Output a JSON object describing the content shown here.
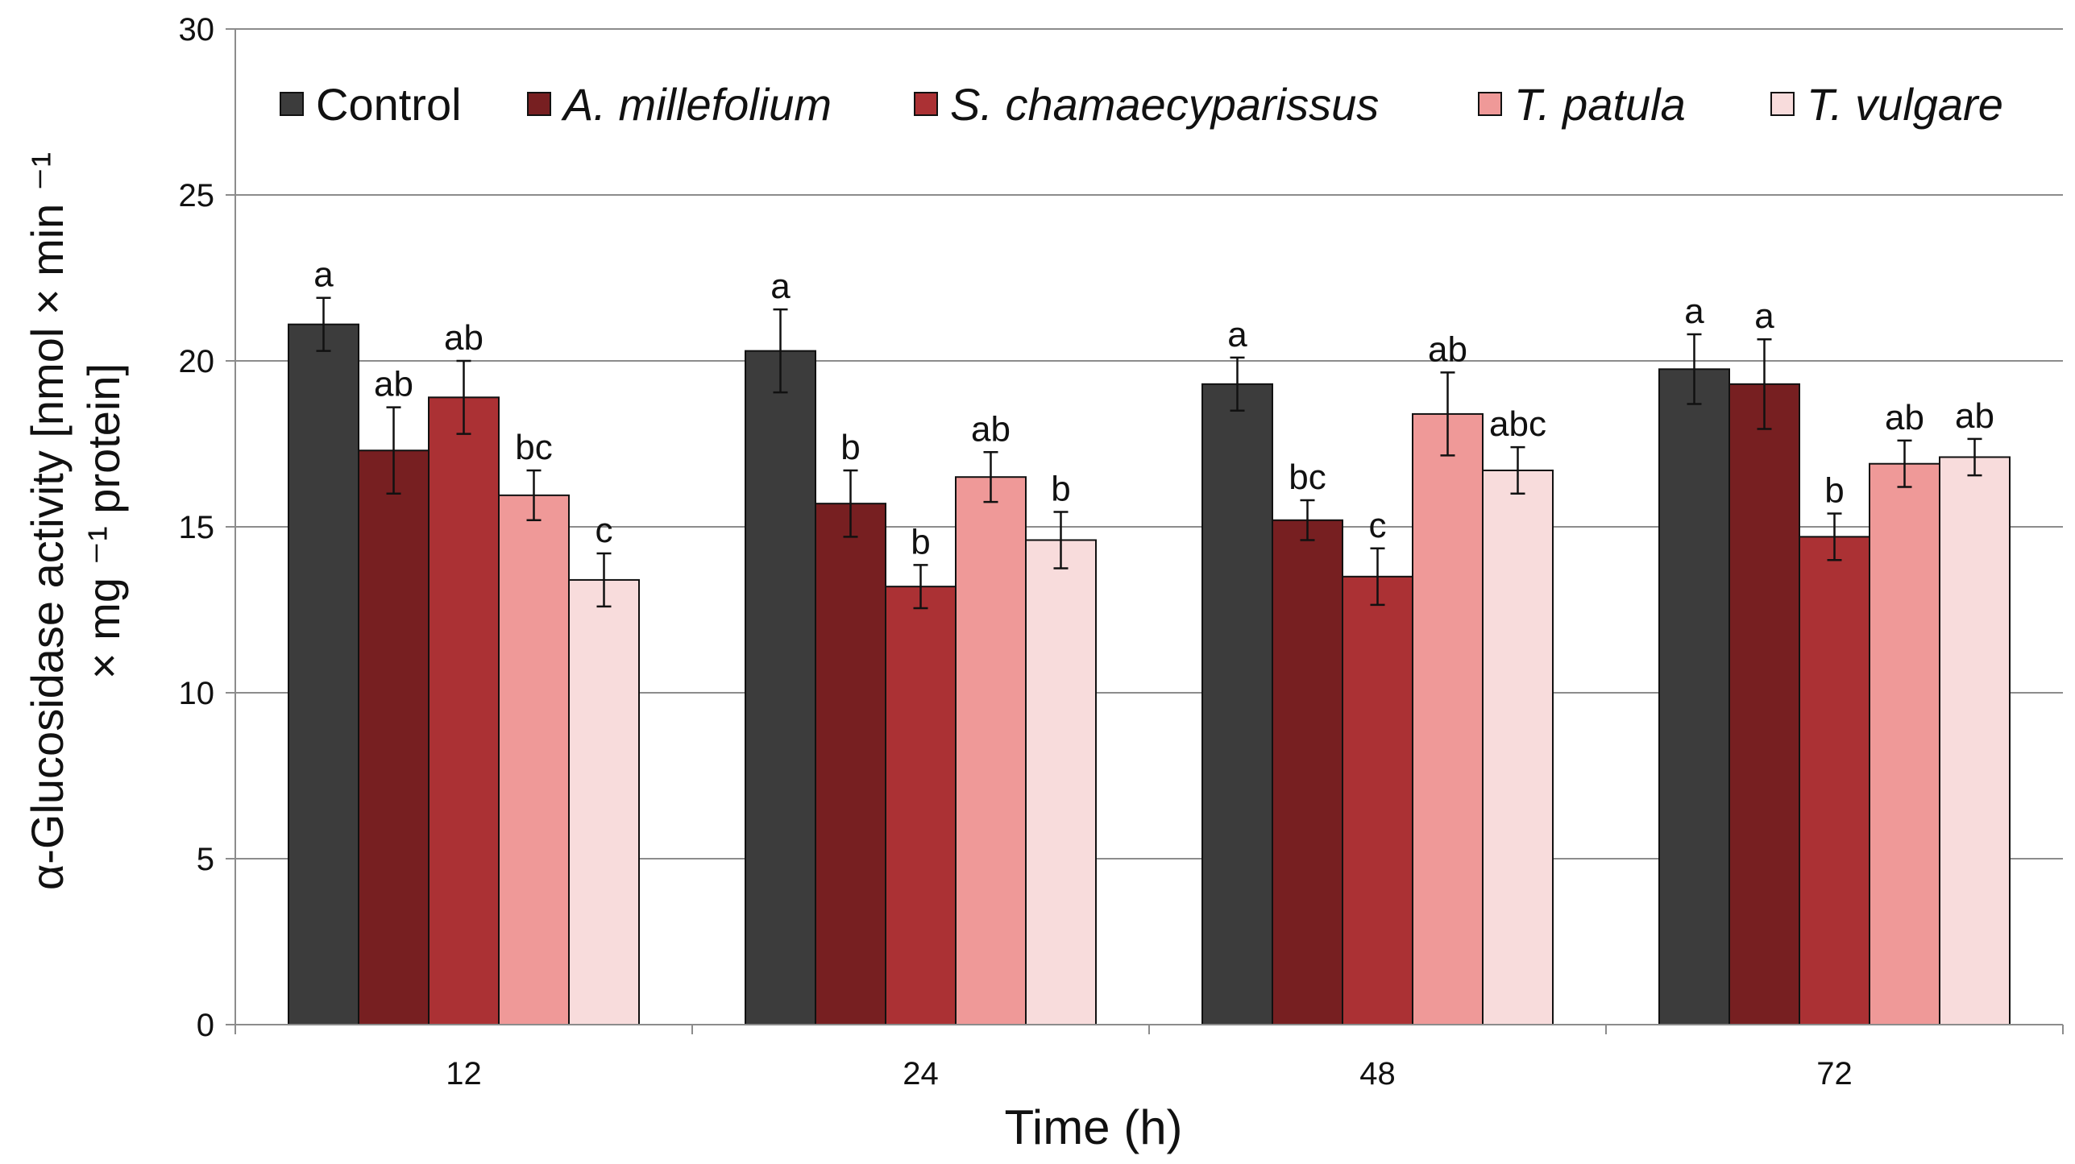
{
  "chart_data": {
    "type": "bar",
    "title": "",
    "xlabel": "Time (h)",
    "ylabel_lines": [
      "α-Glucosidase activity [nmol × min ⁻¹",
      "× mg ⁻¹ protein]"
    ],
    "ylim": [
      0,
      30
    ],
    "yticks": [
      "0",
      "5",
      "10",
      "15",
      "20",
      "25",
      "30"
    ],
    "ytick_values": [
      0,
      5,
      10,
      15,
      20,
      25,
      30
    ],
    "grid": true,
    "legend_position": "top",
    "categories": [
      "12",
      "24",
      "48",
      "72"
    ],
    "series": [
      {
        "name": "Control",
        "italic": false,
        "color": "#3c3c3c",
        "values": [
          21.1,
          20.3,
          19.3,
          19.75
        ],
        "errors": [
          0.8,
          1.25,
          0.8,
          1.05
        ],
        "labels": [
          "a",
          "a",
          "a",
          "a"
        ]
      },
      {
        "name": "A. millefolium",
        "italic": true,
        "color": "#771f21",
        "values": [
          17.3,
          15.7,
          15.2,
          19.3
        ],
        "errors": [
          1.3,
          1.0,
          0.6,
          1.35
        ],
        "labels": [
          "ab",
          "b",
          "bc",
          "a"
        ]
      },
      {
        "name": "S. chamaecyparissus",
        "italic": true,
        "color": "#ab3134",
        "values": [
          18.9,
          13.2,
          13.5,
          14.7
        ],
        "errors": [
          1.1,
          0.65,
          0.85,
          0.7
        ],
        "labels": [
          "ab",
          "b",
          "c",
          "b"
        ]
      },
      {
        "name": "T. patula",
        "italic": true,
        "color": "#ef9998",
        "values": [
          15.95,
          16.5,
          18.4,
          16.9
        ],
        "errors": [
          0.75,
          0.75,
          1.25,
          0.7
        ],
        "labels": [
          "bc",
          "ab",
          "ab",
          "ab"
        ]
      },
      {
        "name": "T. vulgare",
        "italic": true,
        "color": "#f8dcdc",
        "values": [
          13.4,
          14.6,
          16.7,
          17.1
        ],
        "errors": [
          0.8,
          0.85,
          0.7,
          0.55
        ],
        "labels": [
          "c",
          "b",
          "abc",
          "ab"
        ]
      }
    ]
  }
}
